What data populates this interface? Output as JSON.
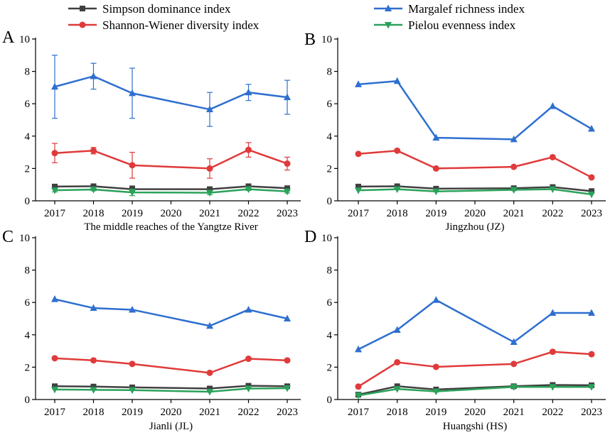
{
  "legend": [
    {
      "name": "Simpson dominance index",
      "color": "#404040",
      "marker": "square"
    },
    {
      "name": "Shannon-Wiener diversity index",
      "color": "#e03a3a",
      "marker": "circle"
    },
    {
      "name": "Margalef richness index",
      "color": "#2e6fd0",
      "marker": "triangle-up"
    },
    {
      "name": "Pielou evenness index",
      "color": "#2aa25a",
      "marker": "triangle-down"
    }
  ],
  "chart_data": [
    {
      "panel": "A",
      "type": "line",
      "xlabel": "The middle reaches of the Yangtze River",
      "x_ticks": [
        "2017",
        "2018",
        "2019",
        "2020",
        "2021",
        "2022",
        "2023"
      ],
      "ylim": [
        0,
        10
      ],
      "y_ticks": [
        "0",
        "2",
        "4",
        "6",
        "8",
        "10"
      ],
      "series": [
        {
          "name": "Margalef richness index",
          "x": [
            2017,
            2018,
            2019,
            2021,
            2022,
            2023
          ],
          "values": [
            7.05,
            7.7,
            6.65,
            5.65,
            6.7,
            6.4
          ],
          "err": [
            1.95,
            0.8,
            1.55,
            1.05,
            0.5,
            1.05
          ]
        },
        {
          "name": "Shannon-Wiener diversity index",
          "x": [
            2017,
            2018,
            2019,
            2021,
            2022,
            2023
          ],
          "values": [
            2.95,
            3.1,
            2.2,
            2.0,
            3.15,
            2.3
          ],
          "err": [
            0.6,
            0.2,
            0.8,
            0.6,
            0.45,
            0.4
          ]
        },
        {
          "name": "Simpson dominance index",
          "x": [
            2017,
            2018,
            2019,
            2021,
            2022,
            2023
          ],
          "values": [
            0.88,
            0.9,
            0.72,
            0.72,
            0.9,
            0.78
          ],
          "err": [
            0.1,
            0.05,
            0.2,
            0.1,
            0.05,
            0.08
          ]
        },
        {
          "name": "Pielou evenness index",
          "x": [
            2017,
            2018,
            2019,
            2021,
            2022,
            2023
          ],
          "values": [
            0.65,
            0.7,
            0.52,
            0.5,
            0.72,
            0.58
          ],
          "err": [
            0.1,
            0.08,
            0.2,
            0.12,
            0.08,
            0.1
          ]
        }
      ]
    },
    {
      "panel": "B",
      "type": "line",
      "xlabel": "Jingzhou (JZ)",
      "x_ticks": [
        "2017",
        "2018",
        "2019",
        "2020",
        "2021",
        "2022",
        "2023"
      ],
      "ylim": [
        0,
        10
      ],
      "y_ticks": [
        "0",
        "2",
        "4",
        "6",
        "8",
        "10"
      ],
      "series": [
        {
          "name": "Margalef richness index",
          "x": [
            2017,
            2018,
            2019,
            2021,
            2022,
            2023
          ],
          "values": [
            7.2,
            7.4,
            3.9,
            3.8,
            5.85,
            4.45
          ]
        },
        {
          "name": "Shannon-Wiener diversity index",
          "x": [
            2017,
            2018,
            2019,
            2021,
            2022,
            2023
          ],
          "values": [
            2.9,
            3.1,
            2.0,
            2.1,
            2.7,
            1.45
          ]
        },
        {
          "name": "Simpson dominance index",
          "x": [
            2017,
            2018,
            2019,
            2021,
            2022,
            2023
          ],
          "values": [
            0.88,
            0.9,
            0.75,
            0.78,
            0.85,
            0.6
          ]
        },
        {
          "name": "Pielou evenness index",
          "x": [
            2017,
            2018,
            2019,
            2021,
            2022,
            2023
          ],
          "values": [
            0.65,
            0.72,
            0.58,
            0.68,
            0.72,
            0.4
          ]
        }
      ]
    },
    {
      "panel": "C",
      "type": "line",
      "xlabel": "Jianli (JL)",
      "x_ticks": [
        "2017",
        "2018",
        "2019",
        "2020",
        "2021",
        "2022",
        "2023"
      ],
      "ylim": [
        0,
        10
      ],
      "y_ticks": [
        "0",
        "2",
        "4",
        "6",
        "8",
        "10"
      ],
      "series": [
        {
          "name": "Margalef richness index",
          "x": [
            2017,
            2018,
            2019,
            2021,
            2022,
            2023
          ],
          "values": [
            6.2,
            5.65,
            5.55,
            4.55,
            5.55,
            5.0
          ]
        },
        {
          "name": "Shannon-Wiener diversity index",
          "x": [
            2017,
            2018,
            2019,
            2021,
            2022,
            2023
          ],
          "values": [
            2.55,
            2.42,
            2.2,
            1.65,
            2.52,
            2.42
          ]
        },
        {
          "name": "Simpson dominance index",
          "x": [
            2017,
            2018,
            2019,
            2021,
            2022,
            2023
          ],
          "values": [
            0.82,
            0.8,
            0.75,
            0.68,
            0.85,
            0.82
          ]
        },
        {
          "name": "Pielou evenness index",
          "x": [
            2017,
            2018,
            2019,
            2021,
            2022,
            2023
          ],
          "values": [
            0.62,
            0.6,
            0.58,
            0.48,
            0.68,
            0.7
          ]
        }
      ]
    },
    {
      "panel": "D",
      "type": "line",
      "xlabel": "Huangshi (HS)",
      "x_ticks": [
        "2017",
        "2018",
        "2019",
        "2020",
        "2021",
        "2022",
        "2023"
      ],
      "ylim": [
        0,
        10
      ],
      "y_ticks": [
        "0",
        "2",
        "4",
        "6",
        "8",
        "10"
      ],
      "series": [
        {
          "name": "Margalef richness index",
          "x": [
            2017,
            2018,
            2019,
            2021,
            2022,
            2023
          ],
          "values": [
            3.1,
            4.3,
            6.15,
            3.55,
            5.35,
            5.35
          ]
        },
        {
          "name": "Shannon-Wiener diversity index",
          "x": [
            2017,
            2018,
            2019,
            2021,
            2022,
            2023
          ],
          "values": [
            0.8,
            2.3,
            2.02,
            2.2,
            2.95,
            2.8
          ]
        },
        {
          "name": "Simpson dominance index",
          "x": [
            2017,
            2018,
            2019,
            2021,
            2022,
            2023
          ],
          "values": [
            0.3,
            0.82,
            0.62,
            0.82,
            0.9,
            0.88
          ]
        },
        {
          "name": "Pielou evenness index",
          "x": [
            2017,
            2018,
            2019,
            2021,
            2022,
            2023
          ],
          "values": [
            0.25,
            0.65,
            0.5,
            0.78,
            0.78,
            0.78
          ]
        }
      ]
    }
  ]
}
